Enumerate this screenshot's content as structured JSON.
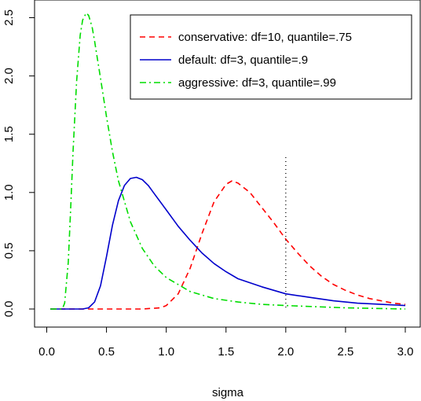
{
  "chart_data": {
    "type": "line",
    "title": "",
    "xlabel": "sigma",
    "ylabel": "",
    "xlim": [
      0,
      3
    ],
    "ylim": [
      0,
      2.5
    ],
    "x_ticks": [
      "0.0",
      "0.5",
      "1.0",
      "1.5",
      "2.0",
      "2.5",
      "3.0"
    ],
    "y_ticks": [
      "0.0",
      "0.5",
      "1.0",
      "1.5",
      "2.0",
      "2.5"
    ],
    "grid": false,
    "legend_position": "top-right",
    "series": [
      {
        "name": "conservative: df=10, quantile=.75",
        "color": "#ff0000",
        "style": "dashed",
        "x": [
          0.03,
          0.8,
          0.95,
          1.0,
          1.1,
          1.2,
          1.3,
          1.4,
          1.5,
          1.55,
          1.6,
          1.7,
          1.8,
          1.9,
          2.0,
          2.1,
          2.2,
          2.3,
          2.4,
          2.5,
          2.6,
          2.7,
          2.8,
          2.9,
          3.0
        ],
        "y": [
          0.0,
          0.0,
          0.01,
          0.03,
          0.13,
          0.35,
          0.65,
          0.92,
          1.07,
          1.1,
          1.08,
          1.0,
          0.87,
          0.74,
          0.6,
          0.48,
          0.37,
          0.28,
          0.21,
          0.16,
          0.12,
          0.09,
          0.07,
          0.05,
          0.04
        ]
      },
      {
        "name": "default: df=3, quantile=.9",
        "color": "#0000cc",
        "style": "solid",
        "x": [
          0.03,
          0.3,
          0.35,
          0.4,
          0.45,
          0.5,
          0.55,
          0.6,
          0.65,
          0.7,
          0.75,
          0.8,
          0.85,
          0.9,
          1.0,
          1.1,
          1.2,
          1.3,
          1.4,
          1.5,
          1.6,
          1.8,
          2.0,
          2.2,
          2.4,
          2.6,
          2.8,
          3.0
        ],
        "y": [
          0.0,
          0.0,
          0.01,
          0.06,
          0.2,
          0.45,
          0.72,
          0.93,
          1.06,
          1.12,
          1.13,
          1.11,
          1.06,
          0.99,
          0.85,
          0.71,
          0.59,
          0.48,
          0.39,
          0.32,
          0.26,
          0.19,
          0.13,
          0.1,
          0.07,
          0.05,
          0.04,
          0.03
        ]
      },
      {
        "name": "aggressive: df=3, quantile=.99",
        "color": "#00dd00",
        "style": "dashdot",
        "x": [
          0.03,
          0.13,
          0.15,
          0.18,
          0.2,
          0.22,
          0.25,
          0.28,
          0.3,
          0.33,
          0.35,
          0.38,
          0.4,
          0.45,
          0.5,
          0.55,
          0.6,
          0.7,
          0.8,
          0.9,
          1.0,
          1.2,
          1.4,
          1.6,
          1.8,
          2.0,
          2.5,
          3.0
        ],
        "y": [
          0.0,
          0.0,
          0.05,
          0.4,
          0.85,
          1.35,
          1.95,
          2.35,
          2.48,
          2.54,
          2.52,
          2.42,
          2.3,
          1.98,
          1.65,
          1.35,
          1.1,
          0.75,
          0.52,
          0.37,
          0.27,
          0.15,
          0.09,
          0.06,
          0.04,
          0.03,
          0.01,
          0.0
        ]
      }
    ],
    "reference_line": {
      "x": 2.0,
      "style": "dotted",
      "color": "#000000"
    }
  }
}
